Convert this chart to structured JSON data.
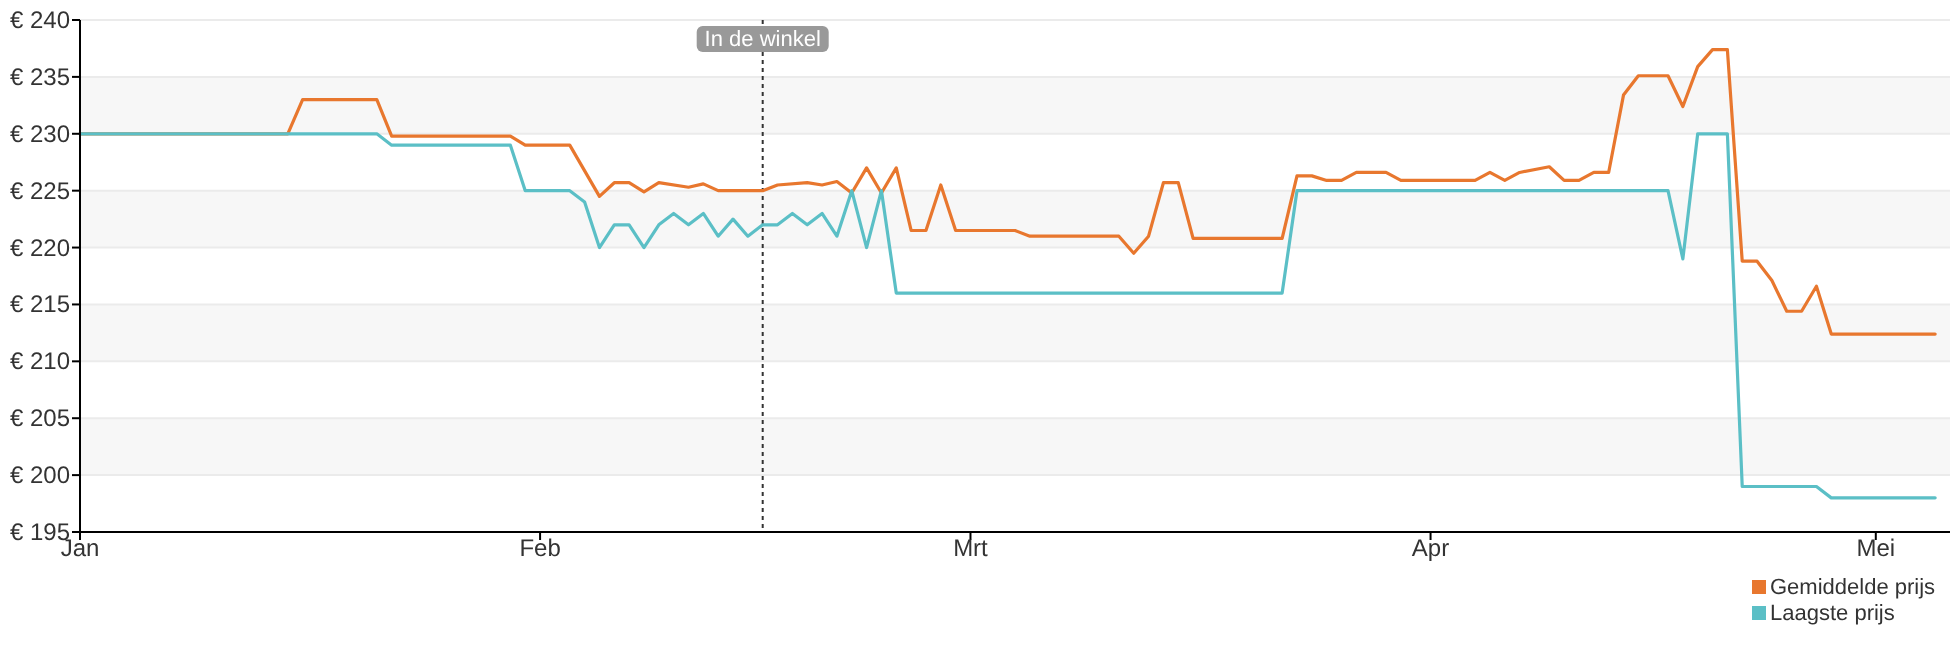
{
  "chart_data": {
    "type": "line",
    "xlim": [
      "--01-01",
      "--05-06"
    ],
    "xticks": [
      {
        "value": "--01-01",
        "label": "Jan"
      },
      {
        "value": "--02-01",
        "label": "Feb"
      },
      {
        "value": "--03-01",
        "label": "Mrt"
      },
      {
        "value": "--04-01",
        "label": "Apr"
      },
      {
        "value": "--05-01",
        "label": "Mei"
      }
    ],
    "ylim": [
      195,
      240
    ],
    "yticks": [
      {
        "value": 195,
        "label": "€ 195"
      },
      {
        "value": 200,
        "label": "€ 200"
      },
      {
        "value": 205,
        "label": "€ 205"
      },
      {
        "value": 210,
        "label": "€ 210"
      },
      {
        "value": 215,
        "label": "€ 215"
      },
      {
        "value": 220,
        "label": "€ 220"
      },
      {
        "value": 225,
        "label": "€ 225"
      },
      {
        "value": 230,
        "label": "€ 230"
      },
      {
        "value": 235,
        "label": "€ 235"
      },
      {
        "value": 240,
        "label": "€ 240"
      }
    ],
    "grid": "y",
    "legend": "bottom right",
    "marker": "none",
    "line_style": "solid",
    "ref_lines": [
      {
        "axis": "x",
        "value": "--02-16",
        "label": "In de winkel",
        "line_style": "dotted",
        "color": "#333333"
      }
    ],
    "series": [
      {
        "name": "Gemiddelde prijs",
        "color": "#e8772e",
        "x": [
          "--01-01",
          "--01-15",
          "--01-16",
          "--01-21",
          "--01-22",
          "--01-30",
          "--01-31",
          "--02-03",
          "--02-05",
          "--02-06",
          "--02-07",
          "--02-08",
          "--02-09",
          "--02-11",
          "--02-12",
          "--02-13",
          "--02-16",
          "--02-17",
          "--02-19",
          "--02-20",
          "--02-21",
          "--02-22",
          "--02-23",
          "--02-24",
          "--02-25",
          "--02-26",
          "--02-27",
          "--02-28",
          "--02-29",
          "--03-04",
          "--03-05",
          "--03-11",
          "--03-12",
          "--03-13",
          "--03-14",
          "--03-15",
          "--03-16",
          "--03-22",
          "--03-23",
          "--03-24",
          "--03-25",
          "--03-26",
          "--03-27",
          "--03-29",
          "--03-30",
          "--04-04",
          "--04-05",
          "--04-06",
          "--04-07",
          "--04-09",
          "--04-10",
          "--04-11",
          "--04-12",
          "--04-13",
          "--04-14",
          "--04-15",
          "--04-17",
          "--04-18",
          "--04-19",
          "--04-20",
          "--04-21",
          "--04-22",
          "--04-23",
          "--04-24",
          "--04-25",
          "--04-26",
          "--04-27",
          "--04-28",
          "--05-05"
        ],
        "values": [
          230,
          230,
          233,
          233,
          229.8,
          229.8,
          229,
          229,
          224.5,
          225.7,
          225.7,
          224.9,
          225.7,
          225.3,
          225.6,
          225,
          225,
          225.5,
          225.7,
          225.5,
          225.8,
          224.8,
          227,
          224.8,
          227,
          221.5,
          221.5,
          225.5,
          221.5,
          221.5,
          221,
          221,
          219.5,
          221,
          225.7,
          225.7,
          220.8,
          220.8,
          226.3,
          226.3,
          225.9,
          225.9,
          226.6,
          226.6,
          225.9,
          225.9,
          226.6,
          225.9,
          226.6,
          227.1,
          225.9,
          225.9,
          226.6,
          226.6,
          233.4,
          235.1,
          235.1,
          232.4,
          235.9,
          237.4,
          237.4,
          218.8,
          218.8,
          217.1,
          214.4,
          214.4,
          216.6,
          212.4,
          212.4
        ]
      },
      {
        "name": "Laagste prijs",
        "color": "#5bbfc6",
        "x": [
          "--01-01",
          "--01-21",
          "--01-22",
          "--01-30",
          "--01-31",
          "--02-03",
          "--02-04",
          "--02-05",
          "--02-06",
          "--02-07",
          "--02-08",
          "--02-09",
          "--02-10",
          "--02-11",
          "--02-12",
          "--02-13",
          "--02-14",
          "--02-15",
          "--02-16",
          "--02-17",
          "--02-18",
          "--02-19",
          "--02-20",
          "--02-21",
          "--02-22",
          "--02-23",
          "--02-24",
          "--02-25",
          "--03-22",
          "--03-23",
          "--04-17",
          "--04-18",
          "--04-19",
          "--04-21",
          "--04-22",
          "--04-27",
          "--04-28",
          "--05-05"
        ],
        "values": [
          230,
          230,
          229,
          229,
          225,
          225,
          224,
          220,
          222,
          222,
          220,
          222,
          223,
          222,
          223,
          221,
          222.5,
          221,
          222,
          222,
          223,
          222,
          223,
          221,
          225,
          220,
          225,
          216,
          216,
          225,
          225,
          219,
          230,
          230,
          199,
          199,
          198,
          198
        ]
      }
    ]
  }
}
